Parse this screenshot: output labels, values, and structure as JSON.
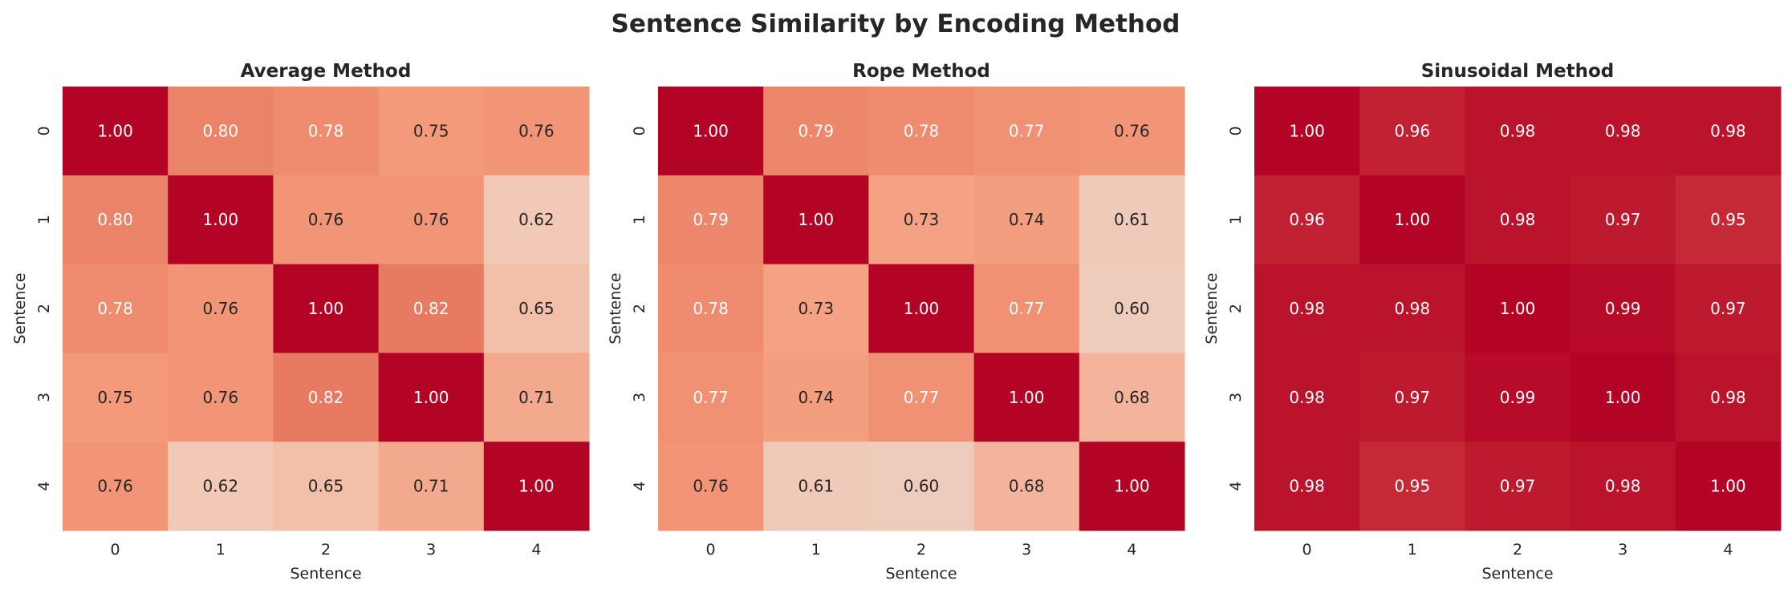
{
  "chart_data": {
    "title": "Sentence Similarity by Encoding Method",
    "colormap": "coolwarm",
    "vmin": 0,
    "vmax": 1,
    "annotation_format": "0.00",
    "panels": [
      {
        "type": "heatmap",
        "title": "Average Method",
        "xlabel": "Sentence",
        "ylabel": "Sentence",
        "x_ticks": [
          "0",
          "1",
          "2",
          "3",
          "4"
        ],
        "y_ticks": [
          "0",
          "1",
          "2",
          "3",
          "4"
        ],
        "values": [
          [
            1.0,
            0.8,
            0.78,
            0.75,
            0.76
          ],
          [
            0.8,
            1.0,
            0.76,
            0.76,
            0.62
          ],
          [
            0.78,
            0.76,
            1.0,
            0.82,
            0.65
          ],
          [
            0.75,
            0.76,
            0.82,
            1.0,
            0.71
          ],
          [
            0.76,
            0.62,
            0.65,
            0.71,
            1.0
          ]
        ]
      },
      {
        "type": "heatmap",
        "title": "Rope Method",
        "xlabel": "Sentence",
        "ylabel": "Sentence",
        "x_ticks": [
          "0",
          "1",
          "2",
          "3",
          "4"
        ],
        "y_ticks": [
          "0",
          "1",
          "2",
          "3",
          "4"
        ],
        "values": [
          [
            1.0,
            0.79,
            0.78,
            0.77,
            0.76
          ],
          [
            0.79,
            1.0,
            0.73,
            0.74,
            0.61
          ],
          [
            0.78,
            0.73,
            1.0,
            0.77,
            0.6
          ],
          [
            0.77,
            0.74,
            0.77,
            1.0,
            0.68
          ],
          [
            0.76,
            0.61,
            0.6,
            0.68,
            1.0
          ]
        ]
      },
      {
        "type": "heatmap",
        "title": "Sinusoidal Method",
        "xlabel": "Sentence",
        "ylabel": "Sentence",
        "x_ticks": [
          "0",
          "1",
          "2",
          "3",
          "4"
        ],
        "y_ticks": [
          "0",
          "1",
          "2",
          "3",
          "4"
        ],
        "values": [
          [
            1.0,
            0.96,
            0.98,
            0.98,
            0.98
          ],
          [
            0.96,
            1.0,
            0.98,
            0.97,
            0.95
          ],
          [
            0.98,
            0.98,
            1.0,
            0.99,
            0.97
          ],
          [
            0.98,
            0.97,
            0.99,
            1.0,
            0.98
          ],
          [
            0.98,
            0.95,
            0.97,
            0.98,
            1.0
          ]
        ]
      }
    ]
  }
}
